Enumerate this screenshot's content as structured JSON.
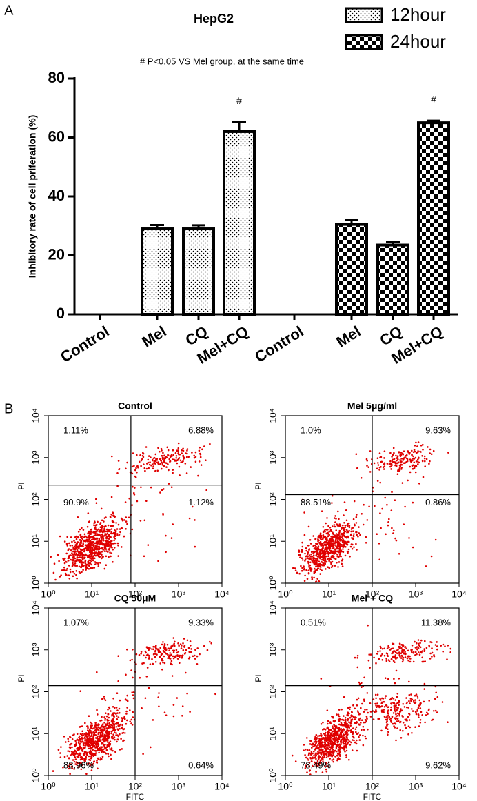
{
  "panel_labels": [
    "A",
    "B"
  ],
  "chart_data": [
    {
      "type": "bar",
      "title": "HepG2",
      "subtitle": "# P<0.05 VS Mel group, at the same time",
      "ylabel": "Inhibitory rate of cell priferation (%)",
      "categories": [
        "Control",
        "Mel",
        "CQ",
        "Mel+CQ"
      ],
      "series": [
        {
          "name": "12hour",
          "color": "#000000",
          "pattern": "dots",
          "values": [
            0,
            29,
            29,
            62
          ],
          "errors": [
            0,
            1.3,
            1.2,
            3.2
          ],
          "annotations": [
            null,
            null,
            null,
            "#"
          ]
        },
        {
          "name": "24hour",
          "color": "#000000",
          "pattern": "checker",
          "values": [
            0,
            30.5,
            23.5,
            65
          ],
          "errors": [
            0,
            1.5,
            1,
            0.7
          ],
          "annotations": [
            null,
            null,
            null,
            "#"
          ]
        }
      ],
      "ylim": [
        0,
        80
      ],
      "yticks": [
        0,
        20,
        40,
        60,
        80
      ],
      "legend": "upper right"
    },
    {
      "type": "scatter",
      "title": "Control",
      "ylabel": "PI",
      "xscale": "log",
      "yscale": "log",
      "xlim": [
        1,
        10000
      ],
      "ylim": [
        1,
        10000
      ],
      "xticks": [
        {
          "value": 1,
          "label": "10⁰"
        },
        {
          "value": 10,
          "label": "10¹"
        },
        {
          "value": 100,
          "label": "10²"
        },
        {
          "value": 1000,
          "label": "10³"
        },
        {
          "value": 10000,
          "label": "10⁴"
        }
      ],
      "yticks": [
        {
          "value": 1,
          "label": "10⁰"
        },
        {
          "value": 10,
          "label": "10¹"
        },
        {
          "value": 100,
          "label": "10²"
        },
        {
          "value": 1000,
          "label": "10³"
        },
        {
          "value": 10000,
          "label": "10⁴"
        }
      ],
      "gate": [
        80,
        220
      ],
      "color": "#e00000",
      "quadrant_labels": {
        "upper_left": "1.11%",
        "upper_right": "6.88%",
        "lower_left": "90.9%",
        "lower_right": "1.12%"
      }
    },
    {
      "type": "scatter",
      "title": "Mel 5μg/ml",
      "ylabel": "PI",
      "xscale": "log",
      "yscale": "log",
      "xlim": [
        1,
        10000
      ],
      "ylim": [
        1,
        10000
      ],
      "xticks": [
        {
          "value": 1,
          "label": "10⁰"
        },
        {
          "value": 10,
          "label": "10¹"
        },
        {
          "value": 100,
          "label": "10²"
        },
        {
          "value": 1000,
          "label": "10³"
        },
        {
          "value": 10000,
          "label": "10⁴"
        }
      ],
      "yticks": [
        {
          "value": 1,
          "label": "10⁰"
        },
        {
          "value": 10,
          "label": "10¹"
        },
        {
          "value": 100,
          "label": "10²"
        },
        {
          "value": 1000,
          "label": "10³"
        },
        {
          "value": 10000,
          "label": "10⁴"
        }
      ],
      "gate": [
        100,
        130
      ],
      "color": "#e00000",
      "quadrant_labels": {
        "upper_left": "1.0%",
        "upper_right": "9.63%",
        "lower_left": "88.51%",
        "lower_right": "0.86%"
      }
    },
    {
      "type": "scatter",
      "title": "CQ 50μM",
      "xlabel": "FITC",
      "ylabel": "PI",
      "xscale": "log",
      "yscale": "log",
      "xlim": [
        1,
        10000
      ],
      "ylim": [
        1,
        10000
      ],
      "xticks": [
        {
          "value": 1,
          "label": "10⁰"
        },
        {
          "value": 10,
          "label": "10¹"
        },
        {
          "value": 100,
          "label": "10²"
        },
        {
          "value": 1000,
          "label": "10³"
        },
        {
          "value": 10000,
          "label": "10⁴"
        }
      ],
      "yticks": [
        {
          "value": 1,
          "label": "10⁰"
        },
        {
          "value": 10,
          "label": "10¹"
        },
        {
          "value": 100,
          "label": "10²"
        },
        {
          "value": 1000,
          "label": "10³"
        },
        {
          "value": 10000,
          "label": "10⁴"
        }
      ],
      "gate": [
        100,
        140
      ],
      "color": "#e00000",
      "quadrant_labels": {
        "upper_left": "1.07%",
        "upper_right": "9.33%",
        "lower_left": "88.96%",
        "lower_right": "0.64%"
      }
    },
    {
      "type": "scatter",
      "title": "Mel + CQ",
      "xlabel": "FITC",
      "ylabel": "PI",
      "xscale": "log",
      "yscale": "log",
      "xlim": [
        1,
        10000
      ],
      "ylim": [
        1,
        10000
      ],
      "xticks": [
        {
          "value": 1,
          "label": "10⁰"
        },
        {
          "value": 10,
          "label": "10¹"
        },
        {
          "value": 100,
          "label": "10²"
        },
        {
          "value": 1000,
          "label": "10³"
        },
        {
          "value": 10000,
          "label": "10⁴"
        }
      ],
      "yticks": [
        {
          "value": 1,
          "label": "10⁰"
        },
        {
          "value": 10,
          "label": "10¹"
        },
        {
          "value": 100,
          "label": "10²"
        },
        {
          "value": 1000,
          "label": "10³"
        },
        {
          "value": 10000,
          "label": "10⁴"
        }
      ],
      "gate": [
        100,
        140
      ],
      "color": "#e00000",
      "quadrant_labels": {
        "upper_left": "0.51%",
        "upper_right": "11.38%",
        "lower_left": "78.49%",
        "lower_right": "9.62%"
      }
    }
  ]
}
